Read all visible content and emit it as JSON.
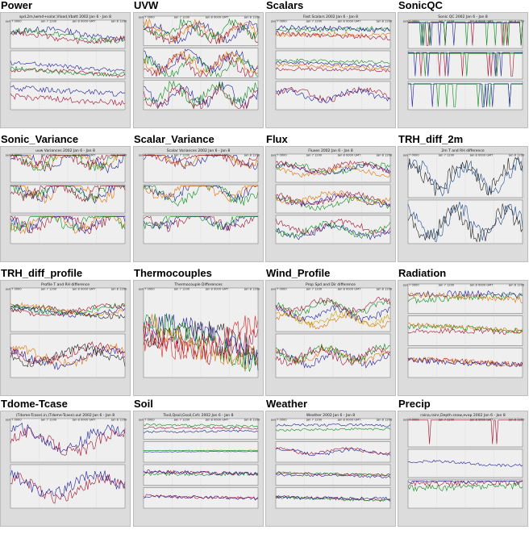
{
  "thumbnails": [
    {
      "title": "Power",
      "caption": "spd.2m,lwmd+solar,Vload,Vbatt 2002 Jan 6 - Jan 8",
      "time_ticks": [
        "Jan 7 0000",
        "Jan 7 1200",
        "Jan 8 0000 GMT",
        "Jan 8 1200"
      ],
      "panels": [
        {
          "colors": [
            "#1d1d9a",
            "#0a8a1a",
            "#a01030"
          ],
          "levels": [
            0.5,
            0.45,
            0.4
          ],
          "amp": 0.35,
          "freq": 9,
          "phase": 0.2
        },
        {
          "colors": [
            "#a01030",
            "#1d1d9a",
            "#0a8a1a"
          ],
          "levels": [
            0.2,
            0.45,
            0.3
          ],
          "amp": 0.25,
          "freq": 6,
          "phase": 1.0
        },
        {
          "colors": [
            "#1d1d9a",
            "#a01030"
          ],
          "levels": [
            0.6,
            0.4
          ],
          "amp": 0.35,
          "freq": 3,
          "phase": 2.0
        }
      ]
    },
    {
      "title": "UVW",
      "caption": "",
      "time_ticks": [
        "Jan 7 0000",
        "Jan 7 1200",
        "Jan 8 0000 GMT",
        "Jan 8 1200"
      ],
      "panels": [
        {
          "colors": [
            "#1d1d9a",
            "#e07000",
            "#a01030",
            "#0a8a1a"
          ],
          "levels": [
            0.45,
            0.5,
            0.4,
            0.55
          ],
          "amp": 0.5,
          "freq": 30,
          "phase": 0.3
        },
        {
          "colors": [
            "#0a8a1a",
            "#1d1d9a",
            "#e07000",
            "#a01030"
          ],
          "levels": [
            0.35,
            0.55,
            0.5,
            0.4
          ],
          "amp": 0.55,
          "freq": 30,
          "phase": 1.4
        },
        {
          "colors": [
            "#1d1d9a",
            "#a01030",
            "#0a8a1a"
          ],
          "levels": [
            0.5,
            0.4,
            0.55
          ],
          "amp": 0.6,
          "freq": 34,
          "phase": 2.1
        }
      ]
    },
    {
      "title": "Scalars",
      "caption": "Fast Scalars 2002 Jan 6 - Jan 8",
      "time_ticks": [
        "Jan 7 0000",
        "Jan 7 1200",
        "Jan 8 0000 GMT",
        "Jan 8 1200"
      ],
      "panels": [
        {
          "colors": [
            "#0a8a1a",
            "#e07000",
            "#1d1d9a",
            "#a01030"
          ],
          "levels": [
            0.55,
            0.35,
            0.6,
            0.45
          ],
          "amp": 0.3,
          "freq": 2,
          "phase": 0.5
        },
        {
          "colors": [
            "#a01030",
            "#e07000",
            "#1d1d9a",
            "#0a8a1a"
          ],
          "levels": [
            0.25,
            0.4,
            0.55,
            0.7
          ],
          "amp": 0.2,
          "freq": 3,
          "phase": 1.2
        },
        {
          "colors": [
            "#a01030",
            "#1d1d9a"
          ],
          "levels": [
            0.55,
            0.5
          ],
          "amp": 0.35,
          "freq": 20,
          "phase": 0.1
        }
      ]
    },
    {
      "title": "SonicQC",
      "caption": "Sonic QC 2002 Jan 6 - Jan 8",
      "time_ticks": [
        "Jan 7 0000",
        "Jan 7 1200",
        "Jan 8 0000 GMT",
        "Jan 8 1200"
      ],
      "panels": [
        {
          "colors": [
            "#1d1d9a",
            "#a01030",
            "#0a8a1a"
          ],
          "levels": [
            0.9,
            0.92,
            0.94
          ],
          "amp": 0.9,
          "freq": 50,
          "phase": 0.0
        },
        {
          "colors": [
            "#a01030",
            "#0a8a1a",
            "#1d1d9a"
          ],
          "levels": [
            0.92,
            0.9,
            0.94
          ],
          "amp": 0.8,
          "freq": 50,
          "phase": 0.7
        },
        {
          "colors": [
            "#0a8a1a",
            "#1d1d9a"
          ],
          "levels": [
            0.9,
            0.92
          ],
          "amp": 0.85,
          "freq": 50,
          "phase": 1.3
        }
      ]
    },
    {
      "title": "Sonic_Variance",
      "caption": "uvw Variances 2002 Jan 6 - Jan 8",
      "time_ticks": [
        "Jan 7 0000",
        "Jan 7 1200",
        "Jan 8 0000 GMT",
        "Jan 8 1200"
      ],
      "panels": [
        {
          "colors": [
            "#1d1d9a",
            "#e07000",
            "#0a8a1a",
            "#a01030"
          ],
          "levels": [
            0.8,
            0.85,
            0.82,
            0.88
          ],
          "amp": 0.6,
          "freq": 25,
          "phase": 0.4
        },
        {
          "colors": [
            "#e07000",
            "#1d1d9a",
            "#0a8a1a",
            "#a01030"
          ],
          "levels": [
            0.8,
            0.82,
            0.84,
            0.86
          ],
          "amp": 0.6,
          "freq": 25,
          "phase": 1.1
        },
        {
          "colors": [
            "#a01030",
            "#1d1d9a",
            "#e07000",
            "#0a8a1a"
          ],
          "levels": [
            0.82,
            0.84,
            0.8,
            0.86
          ],
          "amp": 0.6,
          "freq": 25,
          "phase": 2.2
        }
      ]
    },
    {
      "title": "Scalar_Variance",
      "caption": "Scalar Variances 2002 Jan 6 - Jan 8",
      "time_ticks": [
        "Jan 7 0000",
        "Jan 7 1200",
        "Jan 8 0000 GMT",
        "Jan 8 1200"
      ],
      "panels": [
        {
          "colors": [
            "#1d1d9a",
            "#e07000",
            "#a01030"
          ],
          "levels": [
            0.85,
            0.88,
            0.9
          ],
          "amp": 0.5,
          "freq": 22,
          "phase": 0.3
        },
        {
          "colors": [
            "#0a8a1a",
            "#1d1d9a",
            "#e07000"
          ],
          "levels": [
            0.7,
            0.85,
            0.88
          ],
          "amp": 0.6,
          "freq": 22,
          "phase": 1.5
        },
        {
          "colors": [
            "#a01030",
            "#1d1d9a",
            "#0a8a1a"
          ],
          "levels": [
            0.85,
            0.88,
            0.9
          ],
          "amp": 0.55,
          "freq": 22,
          "phase": 2.5
        }
      ]
    },
    {
      "title": "Flux",
      "caption": "Fluxes 2002 Jan 6 - Jan 8",
      "time_ticks": [
        "Jan 7 0000",
        "Jan 7 1200",
        "Jan 8 0000 GMT",
        "Jan 8 1200"
      ],
      "panels": [
        {
          "colors": [
            "#0a8a1a",
            "#1d1d9a",
            "#a01030",
            "#e07000"
          ],
          "levels": [
            0.5,
            0.45,
            0.55,
            0.4
          ],
          "amp": 0.3,
          "freq": 18,
          "phase": 0.2
        },
        {
          "colors": [
            "#0a8a1a",
            "#a01030",
            "#1d1d9a",
            "#e07000"
          ],
          "levels": [
            0.35,
            0.5,
            0.45,
            0.55
          ],
          "amp": 0.35,
          "freq": 18,
          "phase": 1.2
        },
        {
          "colors": [
            "#a01030",
            "#1d1d9a",
            "#0a8a1a"
          ],
          "levels": [
            0.6,
            0.45,
            0.5
          ],
          "amp": 0.4,
          "freq": 20,
          "phase": 2.0
        }
      ]
    },
    {
      "title": "TRH_diff_2m",
      "caption": "2m T and RH difference",
      "time_ticks": [
        "Jan 7 0000",
        "Jan 7 1200",
        "Jan 8 0000 GMT",
        "Jan 8 1200"
      ],
      "panels": [
        {
          "colors": [
            "#1d4a8a",
            "#222222"
          ],
          "levels": [
            0.45,
            0.5
          ],
          "amp": 0.6,
          "freq": 28,
          "phase": 0.5
        },
        {
          "colors": [
            "#1d4a8a",
            "#222222"
          ],
          "levels": [
            0.5,
            0.45
          ],
          "amp": 0.6,
          "freq": 28,
          "phase": 1.6
        }
      ]
    },
    {
      "title": "TRH_diff_profile",
      "caption": "Profile T and RH difference",
      "time_ticks": [
        "Jan 7 0000",
        "Jan 7 1200",
        "Jan 8 0000 GMT",
        "Jan 8 1200"
      ],
      "panels": [
        {
          "colors": [
            "#222222",
            "#e07000",
            "#1d1d9a",
            "#0a8a1a",
            "#a01030"
          ],
          "levels": [
            0.45,
            0.5,
            0.48,
            0.52,
            0.5
          ],
          "amp": 0.2,
          "freq": 10,
          "phase": 0.4
        },
        {
          "colors": [
            "#e07000",
            "#1d1d9a",
            "#a01030",
            "#222222"
          ],
          "levels": [
            0.5,
            0.45,
            0.55,
            0.5
          ],
          "amp": 0.35,
          "freq": 14,
          "phase": 1.3
        }
      ]
    },
    {
      "title": "Thermocouples",
      "caption": "Thermocouple Differences",
      "time_ticks": [
        "Jan 7 0000",
        "Jan 7 1200",
        "Jan 8 0000 GMT",
        "Jan 8 1200"
      ],
      "panels": [
        {
          "colors": [
            "#222222",
            "#1d1d9a",
            "#0a8a1a",
            "#e07000",
            "#a01030",
            "#dd2222"
          ],
          "levels": [
            0.3,
            0.35,
            0.4,
            0.45,
            0.5,
            0.55
          ],
          "amp": 0.45,
          "freq": 6,
          "phase": 0.2
        }
      ]
    },
    {
      "title": "Wind_Profile",
      "caption": "Prop Spd and Dir difference",
      "time_ticks": [
        "Jan 7 0000",
        "Jan 7 1200",
        "Jan 8 0000 GMT",
        "Jan 8 1200"
      ],
      "panels": [
        {
          "colors": [
            "#e07000",
            "#c8a000",
            "#1d1d9a",
            "#0a8a1a",
            "#a01030"
          ],
          "levels": [
            0.25,
            0.3,
            0.4,
            0.55,
            0.6
          ],
          "amp": 0.25,
          "freq": 24,
          "phase": 0.3
        },
        {
          "colors": [
            "#1d1d9a",
            "#e07000",
            "#0a8a1a",
            "#a01030"
          ],
          "levels": [
            0.45,
            0.5,
            0.55,
            0.5
          ],
          "amp": 0.3,
          "freq": 24,
          "phase": 1.4
        }
      ]
    },
    {
      "title": "Radiation",
      "caption": "",
      "time_ticks": [
        "Jan 7 0000",
        "Jan 7 1200",
        "Jan 8 0000 GMT",
        "Jan 8 1200"
      ],
      "panels": [
        {
          "colors": [
            "#0a8a1a",
            "#1d1d9a",
            "#e07000"
          ],
          "levels": [
            0.4,
            0.5,
            0.45
          ],
          "amp": 0.35,
          "freq": 3,
          "phase": 0.2
        },
        {
          "colors": [
            "#a01030",
            "#0a8a1a",
            "#e07000"
          ],
          "levels": [
            0.35,
            0.5,
            0.6
          ],
          "amp": 0.3,
          "freq": 3,
          "phase": 1.0
        },
        {
          "colors": [
            "#a01030",
            "#e07000",
            "#1d1d9a"
          ],
          "levels": [
            0.45,
            0.55,
            0.6
          ],
          "amp": 0.3,
          "freq": 3,
          "phase": 1.8
        }
      ]
    },
    {
      "title": "Tdome-Tcase",
      "caption": "(Tdome-Tcase).in,(Tdome-Tcase).out 2002 Jan 6 - Jan 8",
      "time_ticks": [
        "Jan 7 0000",
        "Jan 7 1200",
        "Jan 8 0000 GMT",
        "Jan 8 1200"
      ],
      "panels": [
        {
          "colors": [
            "#a01030",
            "#1d1d9a"
          ],
          "levels": [
            0.45,
            0.55
          ],
          "amp": 0.45,
          "freq": 16,
          "phase": 0.3
        },
        {
          "colors": [
            "#a01030",
            "#1d1d9a"
          ],
          "levels": [
            0.45,
            0.55
          ],
          "amp": 0.45,
          "freq": 16,
          "phase": 1.2
        }
      ]
    },
    {
      "title": "Soil",
      "caption": "Tsoil,Qsoil,Gsoil,Csfc 2002 Jan 6 - Jan 8",
      "time_ticks": [
        "Jan 7 0000",
        "Jan 7 1200",
        "Jan 8 0000 GMT",
        "Jan 8 1200"
      ],
      "panels": [
        {
          "colors": [
            "#1d1d9a",
            "#a01030",
            "#0a8a1a"
          ],
          "levels": [
            0.3,
            0.45,
            0.6
          ],
          "amp": 0.2,
          "freq": 2,
          "phase": 0.5
        },
        {
          "colors": [
            "#1d1d9a",
            "#0a8a1a"
          ],
          "levels": [
            0.5,
            0.55
          ],
          "amp": 0.05,
          "freq": 2,
          "phase": 0.0
        },
        {
          "colors": [
            "#0a8a1a",
            "#a01030",
            "#1d1d9a"
          ],
          "levels": [
            0.4,
            0.5,
            0.6
          ],
          "amp": 0.3,
          "freq": 2,
          "phase": 1.2
        },
        {
          "colors": [
            "#1d1d9a",
            "#a01030"
          ],
          "levels": [
            0.45,
            0.55
          ],
          "amp": 0.25,
          "freq": 2,
          "phase": 2.0
        }
      ]
    },
    {
      "title": "Weather",
      "caption": "Weather 2002 Jan 6 - Jan 8",
      "time_ticks": [
        "Jan 7 0000",
        "Jan 7 1200",
        "Jan 8 0000 GMT",
        "Jan 8 1200"
      ],
      "panels": [
        {
          "colors": [
            "#0a8a1a",
            "#1d1d9a"
          ],
          "levels": [
            0.4,
            0.6
          ],
          "amp": 0.2,
          "freq": 3,
          "phase": 0.3
        },
        {
          "colors": [
            "#1d1d9a",
            "#a01030"
          ],
          "levels": [
            0.5,
            0.55
          ],
          "amp": 0.25,
          "freq": 20,
          "phase": 1.0
        },
        {
          "colors": [
            "#1d1d9a",
            "#0a8a1a",
            "#a01030"
          ],
          "levels": [
            0.4,
            0.55,
            0.6
          ],
          "amp": 0.2,
          "freq": 3,
          "phase": 1.7
        },
        {
          "colors": [
            "#a01030",
            "#0a8a1a",
            "#1d1d9a"
          ],
          "levels": [
            0.45,
            0.5,
            0.6
          ],
          "amp": 0.25,
          "freq": 3,
          "phase": 2.2
        }
      ]
    },
    {
      "title": "Precip",
      "caption": "raina,rainr,Depth.snow,evap 2002 Jan 6 - Jan 8",
      "time_ticks": [
        "Jan 7 0000",
        "Jan 7 1200",
        "Jan 8 0000 GMT",
        "Jan 8 1200"
      ],
      "panels": [
        {
          "colors": [
            "#a01030"
          ],
          "levels": [
            0.95
          ],
          "amp": 0.95,
          "freq": 2,
          "phase": 0.0
        },
        {
          "colors": [
            "#1d1d9a"
          ],
          "levels": [
            0.5
          ],
          "amp": 0.15,
          "freq": 10,
          "phase": 0.4
        },
        {
          "colors": [
            "#0a8a1a",
            "#a01030",
            "#1d1d9a"
          ],
          "levels": [
            0.7,
            0.75,
            0.8
          ],
          "amp": 0.4,
          "freq": 1,
          "phase": 0.0
        }
      ]
    }
  ]
}
